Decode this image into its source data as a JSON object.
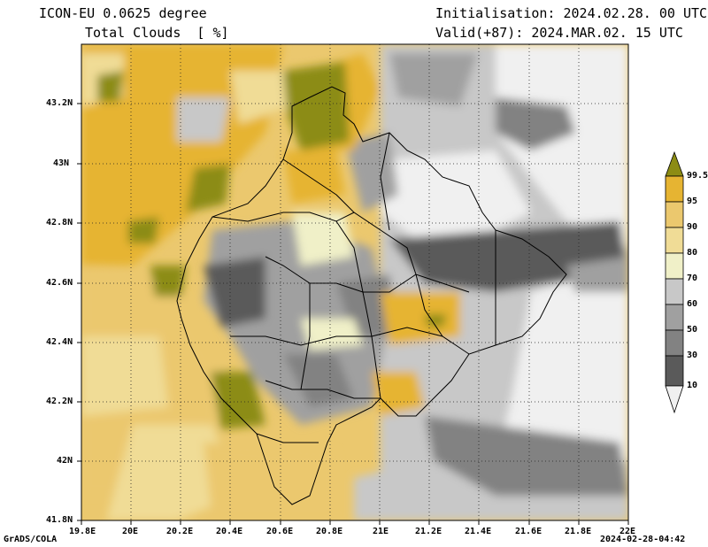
{
  "header": {
    "model": "ICON-EU 0.0625 degree",
    "variable": "Total Clouds  [ %]",
    "init": "Initialisation: 2024.02.28. 00 UTC",
    "valid": "Valid(+87): 2024.MAR.02. 15 UTC"
  },
  "axes": {
    "x_ticks": [
      "19.8E",
      "20E",
      "20.2E",
      "20.4E",
      "20.6E",
      "20.8E",
      "21E",
      "21.2E",
      "21.4E",
      "21.6E",
      "21.8E",
      "22E"
    ],
    "y_ticks": [
      "43.2N",
      "43N",
      "42.8N",
      "42.6N",
      "42.4N",
      "42.2N",
      "42N",
      "41.8N"
    ]
  },
  "colorbar": {
    "labels": [
      "99.5",
      "95",
      "90",
      "80",
      "70",
      "60",
      "50",
      "30",
      "10"
    ],
    "colors": [
      "#8c8c14",
      "#e6b432",
      "#ebc86e",
      "#f0dc96",
      "#f0f0c8",
      "#c8c8c8",
      "#a0a0a0",
      "#828282",
      "#5a5a5a",
      "#f0f0f0"
    ]
  },
  "footer": {
    "left": "GrADS/COLA",
    "right": "2024-02-28-04:42"
  },
  "map_data": {
    "type": "filled-contour",
    "region": "Kosovo",
    "lon_range": [
      19.8,
      22.0
    ],
    "lat_range": [
      41.8,
      43.4
    ],
    "units": "%"
  }
}
